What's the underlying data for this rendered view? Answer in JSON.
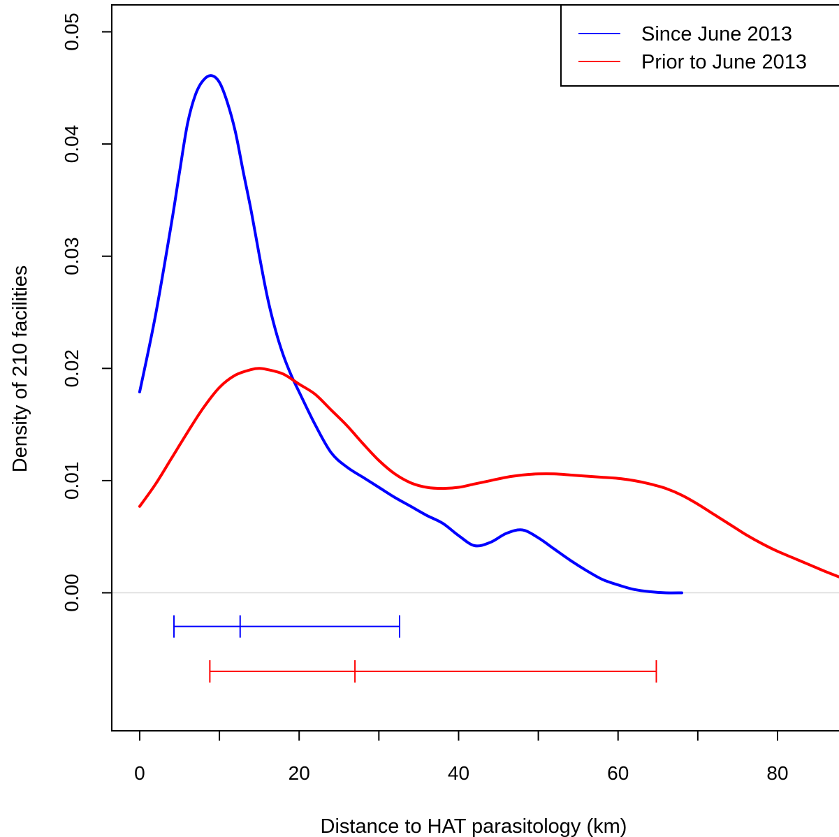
{
  "chart_data": {
    "type": "line",
    "xlabel": "Distance to HAT parasitology (km)",
    "ylabel": "Density of 210 facilities",
    "xlim": [
      -3.5,
      88.5
    ],
    "ylim": [
      -0.0123,
      0.0524
    ],
    "x_ticks": [
      0,
      20,
      40,
      60,
      80
    ],
    "x_minor_ticks": [
      10,
      30,
      50,
      70
    ],
    "y_ticks": [
      0.0,
      0.01,
      0.02,
      0.03,
      0.04,
      0.05
    ],
    "x_tick_labels": [
      "0",
      "20",
      "40",
      "60",
      "80"
    ],
    "y_tick_labels": [
      "0.00",
      "0.01",
      "0.02",
      "0.03",
      "0.04",
      "0.05"
    ],
    "zero_line": true,
    "legend": {
      "position": "top-right",
      "entries": [
        {
          "label": "Since June 2013",
          "color": "#0000ff"
        },
        {
          "label": "Prior to June 2013",
          "color": "#ff0000"
        }
      ]
    },
    "series": [
      {
        "name": "Since June 2013",
        "color": "#0000ff",
        "x": [
          0,
          2,
          4,
          5,
          6,
          7,
          8,
          9,
          10,
          11,
          12,
          13,
          14,
          15,
          16,
          17,
          18,
          19,
          20,
          22,
          24,
          26,
          28,
          30,
          32,
          34,
          36,
          38,
          40,
          42,
          44,
          46,
          48,
          50,
          52,
          54,
          56,
          58,
          60,
          62,
          64,
          66,
          68
        ],
        "y": [
          0.0179,
          0.0248,
          0.033,
          0.0375,
          0.0418,
          0.0444,
          0.0457,
          0.0461,
          0.0455,
          0.0437,
          0.0411,
          0.0375,
          0.034,
          0.0301,
          0.0264,
          0.0235,
          0.0212,
          0.0194,
          0.0179,
          0.015,
          0.0125,
          0.0112,
          0.0103,
          0.0094,
          0.0085,
          0.0077,
          0.0069,
          0.0062,
          0.0051,
          0.0042,
          0.0045,
          0.0053,
          0.0056,
          0.0049,
          0.0039,
          0.0029,
          0.002,
          0.0012,
          0.0007,
          0.0003,
          0.0001,
          0.0,
          0.0
        ]
      },
      {
        "name": "Prior to June 2013",
        "color": "#ff0000",
        "x": [
          0,
          2,
          4,
          6,
          8,
          10,
          12,
          14,
          15,
          16,
          18,
          20,
          22,
          24,
          26,
          28,
          30,
          32,
          34,
          36,
          38,
          40,
          42,
          44,
          46,
          48,
          50,
          52,
          54,
          56,
          58,
          60,
          62,
          64,
          66,
          68,
          70,
          72,
          74,
          76,
          78,
          80,
          82,
          84,
          86,
          88.5
        ],
        "y": [
          0.0077,
          0.0097,
          0.012,
          0.0143,
          0.0165,
          0.0183,
          0.0194,
          0.0199,
          0.02,
          0.0199,
          0.0195,
          0.0186,
          0.0177,
          0.0163,
          0.0149,
          0.0133,
          0.0118,
          0.0106,
          0.0098,
          0.0094,
          0.0093,
          0.0094,
          0.0097,
          0.01,
          0.0103,
          0.0105,
          0.0106,
          0.0106,
          0.0105,
          0.0104,
          0.0103,
          0.0102,
          0.01,
          0.0097,
          0.0093,
          0.0087,
          0.0079,
          0.007,
          0.0061,
          0.0052,
          0.0044,
          0.0037,
          0.0031,
          0.0025,
          0.0019,
          0.0012
        ]
      }
    ],
    "intervals": [
      {
        "series": "Since June 2013",
        "color": "#0000ff",
        "y": -0.003,
        "low": 4.3,
        "mid": 12.6,
        "high": 32.6
      },
      {
        "series": "Prior to June 2013",
        "color": "#ff0000",
        "y": -0.007,
        "low": 8.8,
        "mid": 27.0,
        "high": 64.8
      }
    ]
  }
}
